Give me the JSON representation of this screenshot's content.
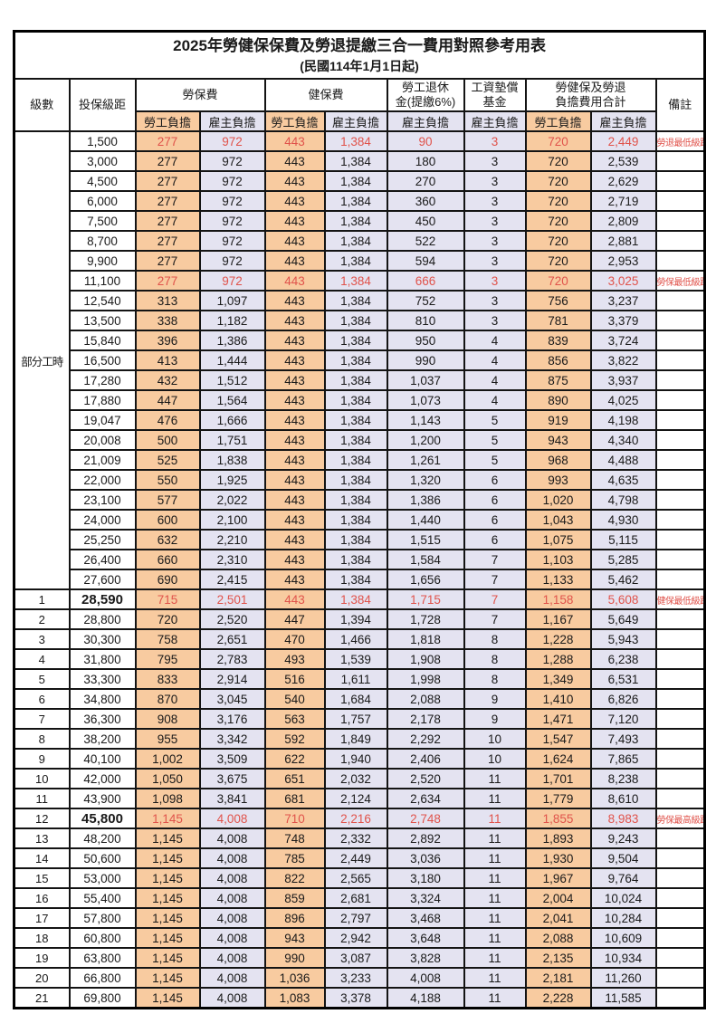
{
  "title": "2025年勞健保保費及勞退提繳三合一費用對照參考用表",
  "subtitle": "(民國114年1月1日起)",
  "header": {
    "level": "級數",
    "bracket": "投保級距",
    "labor_insurance": "勞保費",
    "health_insurance": "健保費",
    "pension_line1": "勞工退休",
    "pension_line2": "金(提繳6%)",
    "wage_fund_line1": "工資墊償",
    "wage_fund_line2": "基金",
    "total_line1": "勞健保及勞退",
    "total_line2": "負擔費用合計",
    "employee": "勞工負擔",
    "employer": "雇主負擔",
    "note": "備註"
  },
  "part_time_label": "部分工時",
  "colors": {
    "employee_bg": "#F8CBA0",
    "employer_bg": "#E4E3F1",
    "highlight_red": "#E0534B",
    "border": "#141414"
  },
  "rows": [
    {
      "level": "",
      "bracket": "1,500",
      "cells": [
        "277",
        "972",
        "443",
        "1,384",
        "90",
        "3",
        "720",
        "2,449"
      ],
      "note": "勞退最低級距",
      "red": true,
      "bold": false
    },
    {
      "level": "",
      "bracket": "3,000",
      "cells": [
        "277",
        "972",
        "443",
        "1,384",
        "180",
        "3",
        "720",
        "2,539"
      ],
      "note": "",
      "red": false,
      "bold": false
    },
    {
      "level": "",
      "bracket": "4,500",
      "cells": [
        "277",
        "972",
        "443",
        "1,384",
        "270",
        "3",
        "720",
        "2,629"
      ],
      "note": "",
      "red": false,
      "bold": false
    },
    {
      "level": "",
      "bracket": "6,000",
      "cells": [
        "277",
        "972",
        "443",
        "1,384",
        "360",
        "3",
        "720",
        "2,719"
      ],
      "note": "",
      "red": false,
      "bold": false
    },
    {
      "level": "",
      "bracket": "7,500",
      "cells": [
        "277",
        "972",
        "443",
        "1,384",
        "450",
        "3",
        "720",
        "2,809"
      ],
      "note": "",
      "red": false,
      "bold": false
    },
    {
      "level": "",
      "bracket": "8,700",
      "cells": [
        "277",
        "972",
        "443",
        "1,384",
        "522",
        "3",
        "720",
        "2,881"
      ],
      "note": "",
      "red": false,
      "bold": false
    },
    {
      "level": "",
      "bracket": "9,900",
      "cells": [
        "277",
        "972",
        "443",
        "1,384",
        "594",
        "3",
        "720",
        "2,953"
      ],
      "note": "",
      "red": false,
      "bold": false
    },
    {
      "level": "",
      "bracket": "11,100",
      "cells": [
        "277",
        "972",
        "443",
        "1,384",
        "666",
        "3",
        "720",
        "3,025"
      ],
      "note": "勞保最低級距",
      "red": true,
      "bold": false
    },
    {
      "level": "",
      "bracket": "12,540",
      "cells": [
        "313",
        "1,097",
        "443",
        "1,384",
        "752",
        "3",
        "756",
        "3,237"
      ],
      "note": "",
      "red": false,
      "bold": false
    },
    {
      "level": "",
      "bracket": "13,500",
      "cells": [
        "338",
        "1,182",
        "443",
        "1,384",
        "810",
        "3",
        "781",
        "3,379"
      ],
      "note": "",
      "red": false,
      "bold": false
    },
    {
      "level": "",
      "bracket": "15,840",
      "cells": [
        "396",
        "1,386",
        "443",
        "1,384",
        "950",
        "4",
        "839",
        "3,724"
      ],
      "note": "",
      "red": false,
      "bold": false
    },
    {
      "level": "",
      "bracket": "16,500",
      "cells": [
        "413",
        "1,444",
        "443",
        "1,384",
        "990",
        "4",
        "856",
        "3,822"
      ],
      "note": "",
      "red": false,
      "bold": false
    },
    {
      "level": "",
      "bracket": "17,280",
      "cells": [
        "432",
        "1,512",
        "443",
        "1,384",
        "1,037",
        "4",
        "875",
        "3,937"
      ],
      "note": "",
      "red": false,
      "bold": false
    },
    {
      "level": "",
      "bracket": "17,880",
      "cells": [
        "447",
        "1,564",
        "443",
        "1,384",
        "1,073",
        "4",
        "890",
        "4,025"
      ],
      "note": "",
      "red": false,
      "bold": false
    },
    {
      "level": "",
      "bracket": "19,047",
      "cells": [
        "476",
        "1,666",
        "443",
        "1,384",
        "1,143",
        "5",
        "919",
        "4,198"
      ],
      "note": "",
      "red": false,
      "bold": false
    },
    {
      "level": "",
      "bracket": "20,008",
      "cells": [
        "500",
        "1,751",
        "443",
        "1,384",
        "1,200",
        "5",
        "943",
        "4,340"
      ],
      "note": "",
      "red": false,
      "bold": false
    },
    {
      "level": "",
      "bracket": "21,009",
      "cells": [
        "525",
        "1,838",
        "443",
        "1,384",
        "1,261",
        "5",
        "968",
        "4,488"
      ],
      "note": "",
      "red": false,
      "bold": false
    },
    {
      "level": "",
      "bracket": "22,000",
      "cells": [
        "550",
        "1,925",
        "443",
        "1,384",
        "1,320",
        "6",
        "993",
        "4,635"
      ],
      "note": "",
      "red": false,
      "bold": false
    },
    {
      "level": "",
      "bracket": "23,100",
      "cells": [
        "577",
        "2,022",
        "443",
        "1,384",
        "1,386",
        "6",
        "1,020",
        "4,798"
      ],
      "note": "",
      "red": false,
      "bold": false
    },
    {
      "level": "",
      "bracket": "24,000",
      "cells": [
        "600",
        "2,100",
        "443",
        "1,384",
        "1,440",
        "6",
        "1,043",
        "4,930"
      ],
      "note": "",
      "red": false,
      "bold": false
    },
    {
      "level": "",
      "bracket": "25,250",
      "cells": [
        "632",
        "2,210",
        "443",
        "1,384",
        "1,515",
        "6",
        "1,075",
        "5,115"
      ],
      "note": "",
      "red": false,
      "bold": false
    },
    {
      "level": "",
      "bracket": "26,400",
      "cells": [
        "660",
        "2,310",
        "443",
        "1,384",
        "1,584",
        "7",
        "1,103",
        "5,285"
      ],
      "note": "",
      "red": false,
      "bold": false
    },
    {
      "level": "",
      "bracket": "27,600",
      "cells": [
        "690",
        "2,415",
        "443",
        "1,384",
        "1,656",
        "7",
        "1,133",
        "5,462"
      ],
      "note": "",
      "red": false,
      "bold": false
    },
    {
      "level": "1",
      "bracket": "28,590",
      "cells": [
        "715",
        "2,501",
        "443",
        "1,384",
        "1,715",
        "7",
        "1,158",
        "5,608"
      ],
      "note": "健保最低級距",
      "red": true,
      "bold": true
    },
    {
      "level": "2",
      "bracket": "28,800",
      "cells": [
        "720",
        "2,520",
        "447",
        "1,394",
        "1,728",
        "7",
        "1,167",
        "5,649"
      ],
      "note": "",
      "red": false,
      "bold": false
    },
    {
      "level": "3",
      "bracket": "30,300",
      "cells": [
        "758",
        "2,651",
        "470",
        "1,466",
        "1,818",
        "8",
        "1,228",
        "5,943"
      ],
      "note": "",
      "red": false,
      "bold": false
    },
    {
      "level": "4",
      "bracket": "31,800",
      "cells": [
        "795",
        "2,783",
        "493",
        "1,539",
        "1,908",
        "8",
        "1,288",
        "6,238"
      ],
      "note": "",
      "red": false,
      "bold": false
    },
    {
      "level": "5",
      "bracket": "33,300",
      "cells": [
        "833",
        "2,914",
        "516",
        "1,611",
        "1,998",
        "8",
        "1,349",
        "6,531"
      ],
      "note": "",
      "red": false,
      "bold": false
    },
    {
      "level": "6",
      "bracket": "34,800",
      "cells": [
        "870",
        "3,045",
        "540",
        "1,684",
        "2,088",
        "9",
        "1,410",
        "6,826"
      ],
      "note": "",
      "red": false,
      "bold": false
    },
    {
      "level": "7",
      "bracket": "36,300",
      "cells": [
        "908",
        "3,176",
        "563",
        "1,757",
        "2,178",
        "9",
        "1,471",
        "7,120"
      ],
      "note": "",
      "red": false,
      "bold": false
    },
    {
      "level": "8",
      "bracket": "38,200",
      "cells": [
        "955",
        "3,342",
        "592",
        "1,849",
        "2,292",
        "10",
        "1,547",
        "7,493"
      ],
      "note": "",
      "red": false,
      "bold": false
    },
    {
      "level": "9",
      "bracket": "40,100",
      "cells": [
        "1,002",
        "3,509",
        "622",
        "1,940",
        "2,406",
        "10",
        "1,624",
        "7,865"
      ],
      "note": "",
      "red": false,
      "bold": false
    },
    {
      "level": "10",
      "bracket": "42,000",
      "cells": [
        "1,050",
        "3,675",
        "651",
        "2,032",
        "2,520",
        "11",
        "1,701",
        "8,238"
      ],
      "note": "",
      "red": false,
      "bold": false
    },
    {
      "level": "11",
      "bracket": "43,900",
      "cells": [
        "1,098",
        "3,841",
        "681",
        "2,124",
        "2,634",
        "11",
        "1,779",
        "8,610"
      ],
      "note": "",
      "red": false,
      "bold": false
    },
    {
      "level": "12",
      "bracket": "45,800",
      "cells": [
        "1,145",
        "4,008",
        "710",
        "2,216",
        "2,748",
        "11",
        "1,855",
        "8,983"
      ],
      "note": "勞保最高級距",
      "red": true,
      "bold": true
    },
    {
      "level": "13",
      "bracket": "48,200",
      "cells": [
        "1,145",
        "4,008",
        "748",
        "2,332",
        "2,892",
        "11",
        "1,893",
        "9,243"
      ],
      "note": "",
      "red": false,
      "bold": false
    },
    {
      "level": "14",
      "bracket": "50,600",
      "cells": [
        "1,145",
        "4,008",
        "785",
        "2,449",
        "3,036",
        "11",
        "1,930",
        "9,504"
      ],
      "note": "",
      "red": false,
      "bold": false
    },
    {
      "level": "15",
      "bracket": "53,000",
      "cells": [
        "1,145",
        "4,008",
        "822",
        "2,565",
        "3,180",
        "11",
        "1,967",
        "9,764"
      ],
      "note": "",
      "red": false,
      "bold": false
    },
    {
      "level": "16",
      "bracket": "55,400",
      "cells": [
        "1,145",
        "4,008",
        "859",
        "2,681",
        "3,324",
        "11",
        "2,004",
        "10,024"
      ],
      "note": "",
      "red": false,
      "bold": false
    },
    {
      "level": "17",
      "bracket": "57,800",
      "cells": [
        "1,145",
        "4,008",
        "896",
        "2,797",
        "3,468",
        "11",
        "2,041",
        "10,284"
      ],
      "note": "",
      "red": false,
      "bold": false
    },
    {
      "level": "18",
      "bracket": "60,800",
      "cells": [
        "1,145",
        "4,008",
        "943",
        "2,942",
        "3,648",
        "11",
        "2,088",
        "10,609"
      ],
      "note": "",
      "red": false,
      "bold": false
    },
    {
      "level": "19",
      "bracket": "63,800",
      "cells": [
        "1,145",
        "4,008",
        "990",
        "3,087",
        "3,828",
        "11",
        "2,135",
        "10,934"
      ],
      "note": "",
      "red": false,
      "bold": false
    },
    {
      "level": "20",
      "bracket": "66,800",
      "cells": [
        "1,145",
        "4,008",
        "1,036",
        "3,233",
        "4,008",
        "11",
        "2,181",
        "11,260"
      ],
      "note": "",
      "red": false,
      "bold": false
    },
    {
      "level": "21",
      "bracket": "69,800",
      "cells": [
        "1,145",
        "4,008",
        "1,083",
        "3,378",
        "4,188",
        "11",
        "2,228",
        "11,585"
      ],
      "note": "",
      "red": false,
      "bold": false
    }
  ]
}
